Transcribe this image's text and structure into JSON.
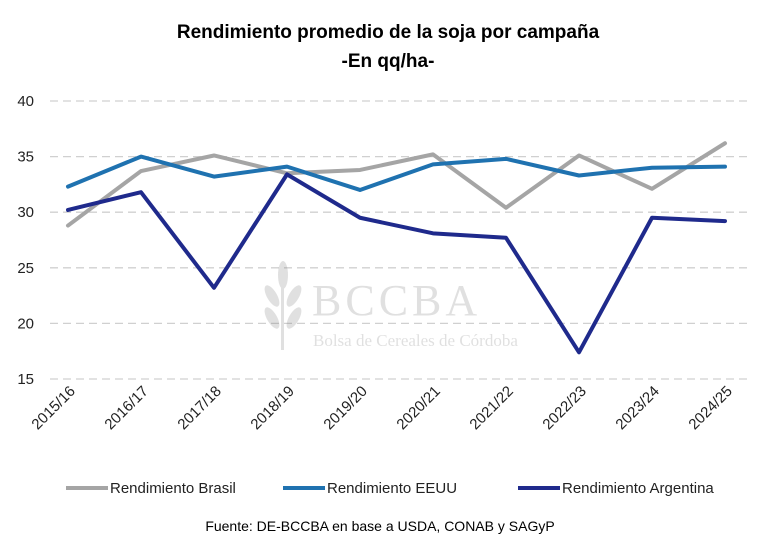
{
  "chart_data": {
    "type": "line",
    "title": "Rendimiento promedio de la soja por campaña",
    "subtitle": "-En qq/ha-",
    "xlabel": "",
    "ylabel": "",
    "ylim": [
      15,
      40
    ],
    "yticks": [
      "15",
      "20",
      "25",
      "30",
      "35",
      "40"
    ],
    "grid": true,
    "legend_position": "bottom",
    "categories": [
      "2015/16",
      "2016/17",
      "2017/18",
      "2018/19",
      "2019/20",
      "2020/21",
      "2021/22",
      "2022/23",
      "2023/24",
      "2024/25"
    ],
    "series": [
      {
        "name": "Rendimiento Brasil",
        "color": "#A5A5A5",
        "values": [
          28.8,
          33.7,
          35.1,
          33.5,
          33.8,
          35.2,
          30.4,
          35.1,
          32.1,
          36.2
        ]
      },
      {
        "name": "Rendimiento EEUU",
        "color": "#1F72B0",
        "values": [
          32.3,
          35.0,
          33.2,
          34.1,
          32.0,
          34.3,
          34.8,
          33.3,
          34.0,
          34.1
        ]
      },
      {
        "name": "Rendimiento Argentina",
        "color": "#1F2A8C",
        "values": [
          30.2,
          31.8,
          23.2,
          33.4,
          29.5,
          28.1,
          27.7,
          17.4,
          29.5,
          29.2
        ]
      }
    ],
    "source": "Fuente: DE-BCCBA en base a USDA, CONAB y SAGyP"
  },
  "watermark": {
    "logo": "BCCBA",
    "name": "Bolsa de Cereales de Córdoba"
  }
}
